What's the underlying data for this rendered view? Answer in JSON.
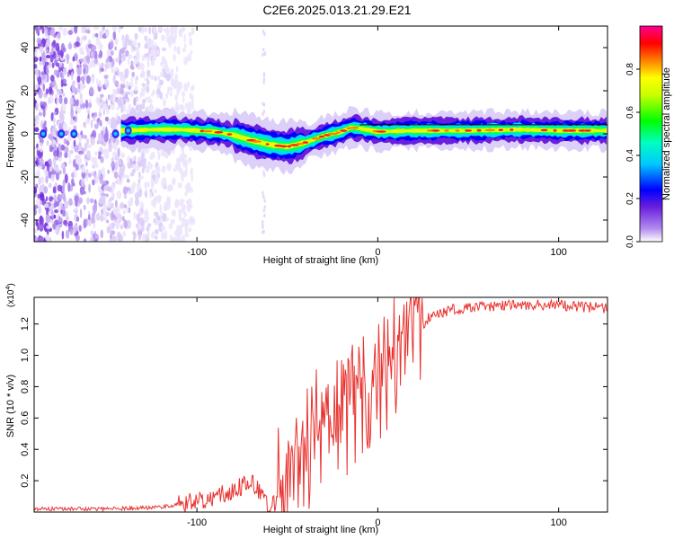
{
  "title": "C2E6.2025.013.21.29.E21",
  "chart_data": [
    {
      "type": "heatmap",
      "name": "spectrogram",
      "xlabel": "Height of straight line (km)",
      "ylabel": "Frequency (Hz)",
      "xlim": [
        -190,
        127
      ],
      "ylim": [
        -50,
        50
      ],
      "xticks": [
        -100,
        0,
        100
      ],
      "yticks": [
        -40,
        -20,
        0,
        20,
        40
      ],
      "xtick_labels": [
        "-100",
        "0",
        "100"
      ],
      "ytick_labels": [
        "-40",
        "-20",
        "0",
        "20",
        "40"
      ],
      "colorbar": {
        "label": "Normalized spectral amplitude",
        "range": [
          0,
          1
        ],
        "ticks": [
          0.0,
          0.2,
          0.4,
          0.6,
          0.8
        ],
        "tick_labels": [
          "0.0",
          "0.2",
          "0.4",
          "0.6",
          "0.8"
        ],
        "colormap": [
          "#ffffff",
          "#6a1fdc",
          "#0000ff",
          "#00ffff",
          "#00ff00",
          "#ffff00",
          "#ff8000",
          "#ff0000",
          "#ff00aa"
        ]
      },
      "ridge_center": [
        [
          -140,
          1.5
        ],
        [
          -130,
          1.8
        ],
        [
          -120,
          2.0
        ],
        [
          -110,
          2.0
        ],
        [
          -100,
          1.5
        ],
        [
          -90,
          1.0
        ],
        [
          -80,
          -0.5
        ],
        [
          -70,
          -3.0
        ],
        [
          -60,
          -5.0
        ],
        [
          -50,
          -6.0
        ],
        [
          -40,
          -4.0
        ],
        [
          -30,
          -1.0
        ],
        [
          -20,
          1.0
        ],
        [
          -15,
          3.0
        ],
        [
          -10,
          2.5
        ],
        [
          0,
          1.0
        ],
        [
          20,
          1.5
        ],
        [
          50,
          1.5
        ],
        [
          80,
          2.0
        ],
        [
          100,
          1.5
        ],
        [
          127,
          1.5
        ]
      ],
      "noise_region_km": [
        -190,
        -110
      ]
    },
    {
      "type": "line",
      "name": "snr",
      "xlabel": "Height of straight line (km)",
      "ylabel": "SNR (10 * v/v)",
      "scale_label": "(x10",
      "scale_exponent": "4",
      "xlim": [
        -190,
        127
      ],
      "ylim": [
        0,
        1.37
      ],
      "xticks": [
        -100,
        0,
        100
      ],
      "yticks": [
        0.2,
        0.4,
        0.6,
        0.8,
        1.0,
        1.2
      ],
      "xtick_labels": [
        "-100",
        "0",
        "100"
      ],
      "ytick_labels": [
        "0.2",
        "0.4",
        "0.6",
        "0.8",
        "1.0",
        "1.2"
      ],
      "color": "#e8322e",
      "envelope": [
        [
          -190,
          0.02
        ],
        [
          -150,
          0.02
        ],
        [
          -120,
          0.03
        ],
        [
          -100,
          0.07
        ],
        [
          -90,
          0.1
        ],
        [
          -80,
          0.14
        ],
        [
          -70,
          0.19
        ],
        [
          -65,
          0.12
        ],
        [
          -60,
          0.03
        ],
        [
          -55,
          0.08
        ],
        [
          -50,
          0.18
        ],
        [
          -45,
          0.28
        ],
        [
          -40,
          0.38
        ],
        [
          -35,
          0.48
        ],
        [
          -30,
          0.55
        ],
        [
          -25,
          0.62
        ],
        [
          -20,
          0.68
        ],
        [
          -15,
          0.7
        ],
        [
          -10,
          0.68
        ],
        [
          -5,
          0.72
        ],
        [
          0,
          0.78
        ],
        [
          5,
          0.82
        ],
        [
          10,
          0.9
        ],
        [
          15,
          1.02
        ],
        [
          20,
          1.12
        ],
        [
          25,
          1.2
        ],
        [
          30,
          1.26
        ],
        [
          40,
          1.29
        ],
        [
          60,
          1.31
        ],
        [
          80,
          1.32
        ],
        [
          100,
          1.32
        ],
        [
          127,
          1.3
        ]
      ]
    }
  ]
}
